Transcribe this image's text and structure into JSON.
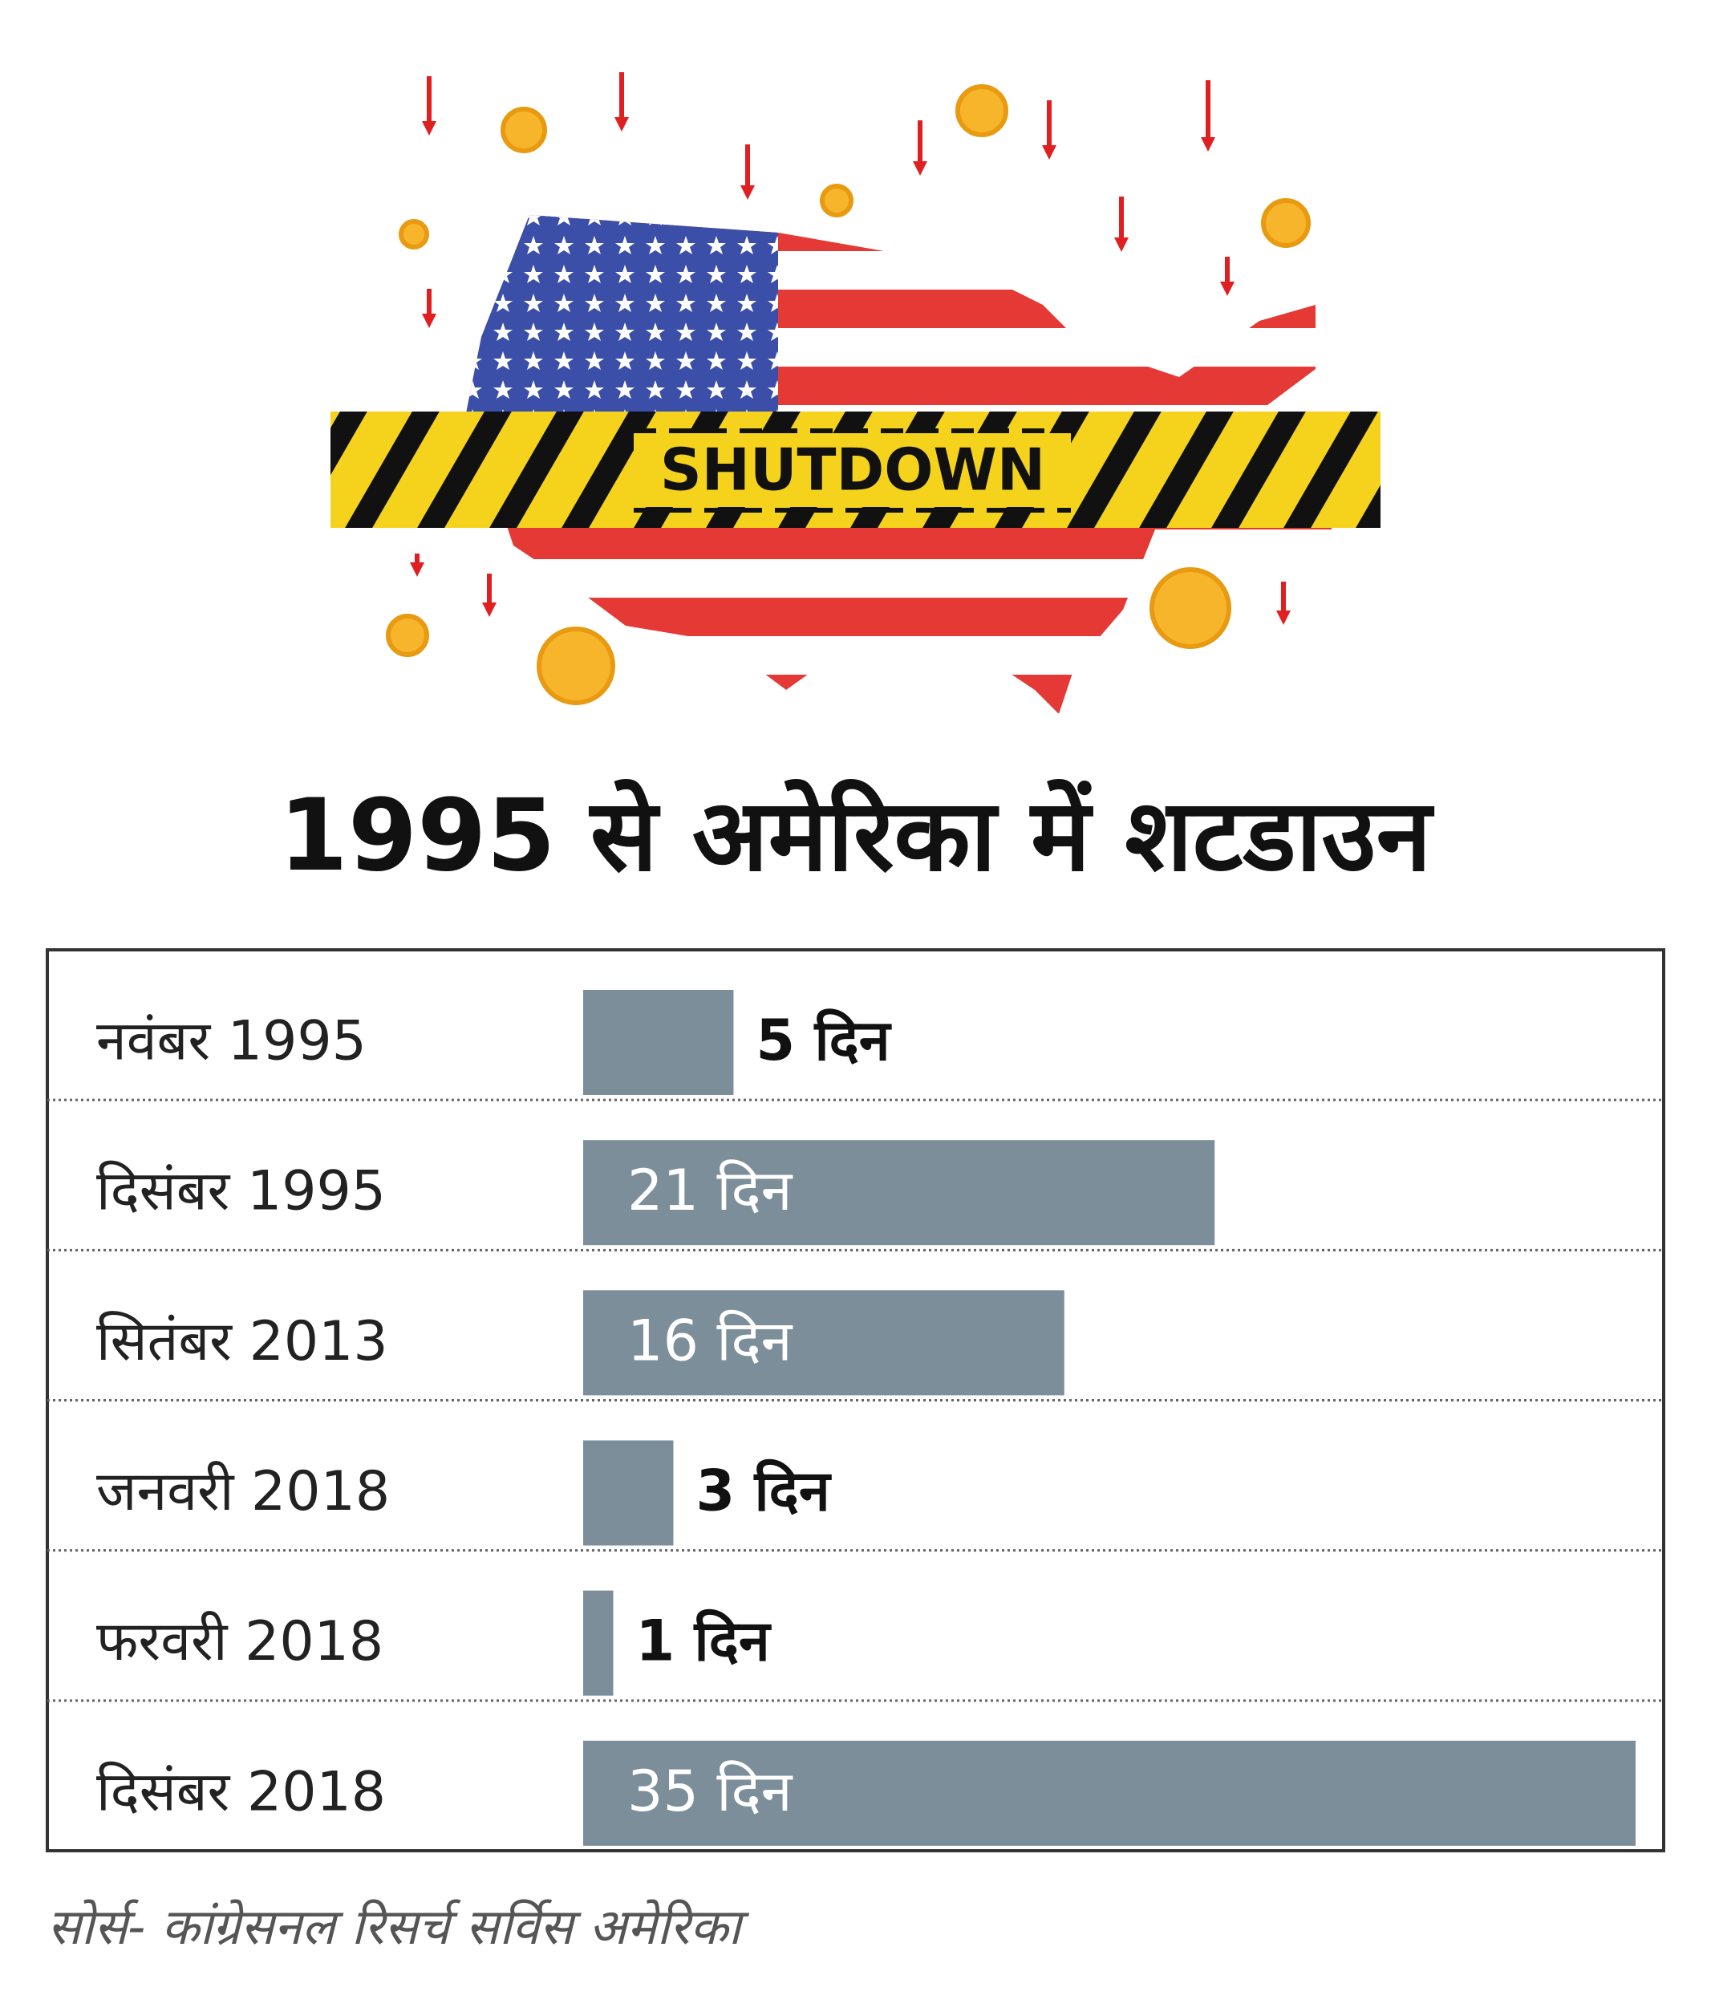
{
  "chart_data": {
    "type": "bar",
    "orientation": "horizontal",
    "illustration_label": "SHUTDOWN",
    "title": "1995 से अमेरिका में शटडाउन",
    "categories": [
      "नवंबर 1995",
      "दिसंबर 1995",
      "सितंबर 2013",
      "जनवरी 2018",
      "फरवरी 2018",
      "दिसंबर 2018"
    ],
    "values": [
      5,
      21,
      16,
      3,
      1,
      35
    ],
    "value_labels": [
      "5 दिन",
      "21 दिन",
      "16 दिन",
      "3 दिन",
      "1 दिन",
      "35 दिन"
    ],
    "color": "#7b8e99",
    "source": "सोर्स- कांग्रेसनल रिसर्च सर्विस अमेरिका"
  }
}
